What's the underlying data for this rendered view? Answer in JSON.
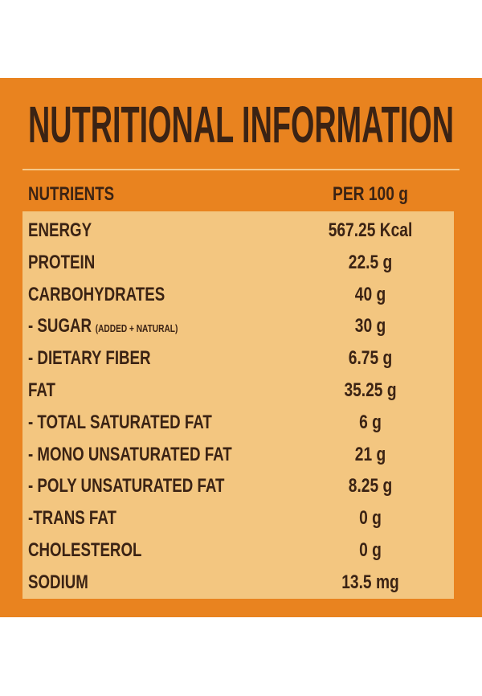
{
  "title": "NUTRITIONAL INFORMATION",
  "table": {
    "header": [
      "NUTRIENTS",
      "PER 100 g"
    ],
    "rows": [
      {
        "nutrient": "ENERGY",
        "amount": "567.25 Kcal"
      },
      {
        "nutrient": "PROTEIN",
        "amount": "22.5 g"
      },
      {
        "nutrient": "CARBOHYDRATES",
        "amount": "40 g"
      },
      {
        "nutrient": "- SUGAR",
        "note": "(ADDED + NATURAL)",
        "amount": "30 g"
      },
      {
        "nutrient": "- DIETARY FIBER",
        "amount": "6.75 g"
      },
      {
        "nutrient": "FAT",
        "amount": "35.25 g"
      },
      {
        "nutrient": "- TOTAL SATURATED FAT",
        "amount": "6 g"
      },
      {
        "nutrient": "- MONO UNSATURATED FAT",
        "amount": "21 g"
      },
      {
        "nutrient": "- POLY UNSATURATED FAT",
        "amount": "8.25 g"
      },
      {
        "nutrient": "-TRANS FAT",
        "amount": "0 g"
      },
      {
        "nutrient": "CHOLESTEROL",
        "amount": "0 g"
      },
      {
        "nutrient": "SODIUM",
        "amount": "13.5 mg"
      }
    ]
  }
}
